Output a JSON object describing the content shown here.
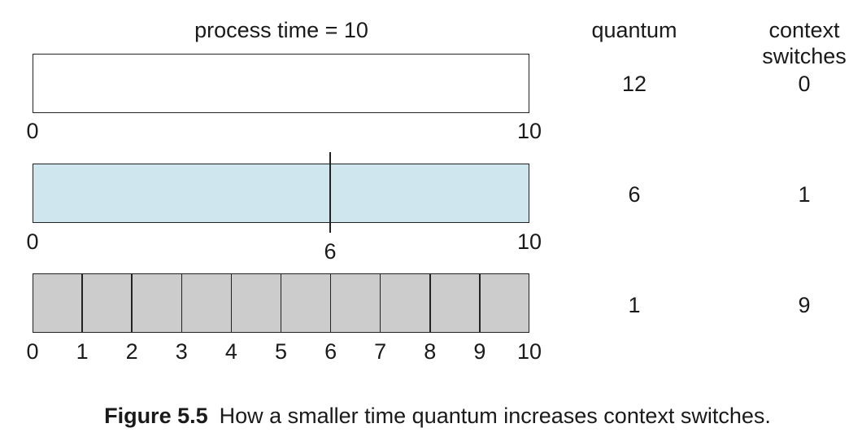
{
  "header": {
    "process_time": "process time = 10",
    "quantum": "quantum",
    "context_line1": "context",
    "context_line2": "switches"
  },
  "rows": [
    {
      "quantum": "12",
      "switches": "0",
      "start_label": "0",
      "end_label": "10",
      "fill": "#ffffff"
    },
    {
      "quantum": "6",
      "switches": "1",
      "start_label": "0",
      "mid_label": "6",
      "end_label": "10",
      "fill": "#cfe6ef"
    },
    {
      "quantum": "1",
      "switches": "9",
      "fill": "#cccccc",
      "ticks": [
        "0",
        "1",
        "2",
        "3",
        "4",
        "5",
        "6",
        "7",
        "8",
        "9",
        "10"
      ]
    }
  ],
  "caption": {
    "label": "Figure 5.5",
    "text": "How a smaller time quantum increases context switches."
  }
}
